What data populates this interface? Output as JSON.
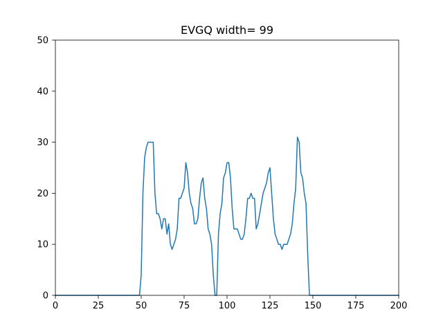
{
  "chart_data": {
    "type": "line",
    "title": "EVGQ width= 99",
    "xlabel": "",
    "ylabel": "",
    "xlim": [
      0,
      200
    ],
    "ylim": [
      0,
      50
    ],
    "x_ticks": [
      0,
      25,
      50,
      75,
      100,
      125,
      150,
      175,
      200
    ],
    "y_ticks": [
      0,
      10,
      20,
      30,
      40,
      50
    ],
    "grid": false,
    "series": [
      {
        "color": "#1f77b4",
        "x": [
          0,
          49,
          50,
          51,
          52,
          53,
          54,
          55,
          56,
          57,
          58,
          59,
          60,
          61,
          62,
          63,
          64,
          65,
          66,
          67,
          68,
          69,
          70,
          71,
          72,
          73,
          74,
          75,
          76,
          77,
          78,
          79,
          80,
          81,
          82,
          83,
          84,
          85,
          86,
          87,
          88,
          89,
          90,
          91,
          92,
          93,
          94,
          95,
          96,
          97,
          98,
          99,
          100,
          101,
          102,
          103,
          104,
          105,
          106,
          107,
          108,
          109,
          110,
          111,
          112,
          113,
          114,
          115,
          116,
          117,
          118,
          119,
          120,
          121,
          122,
          123,
          124,
          125,
          126,
          127,
          128,
          129,
          130,
          131,
          132,
          133,
          134,
          135,
          136,
          137,
          138,
          139,
          140,
          141,
          142,
          143,
          144,
          145,
          146,
          147,
          148,
          200
        ],
        "y": [
          0,
          0,
          4,
          20,
          27,
          29,
          30,
          30,
          30,
          30,
          20,
          16,
          16,
          15,
          13,
          15,
          15,
          12,
          14,
          10,
          9,
          10,
          11,
          13,
          19,
          19,
          20,
          21,
          26,
          24,
          20,
          18,
          17,
          14,
          14,
          15,
          19,
          22,
          23,
          19,
          17,
          13,
          12,
          10,
          4,
          0,
          0,
          12,
          16,
          18,
          23,
          24,
          26,
          26,
          23,
          17,
          13,
          13,
          13,
          12,
          11,
          11,
          12,
          15,
          19,
          19,
          20,
          19,
          19,
          13,
          14,
          16,
          18,
          20,
          21,
          22,
          24,
          25,
          20,
          15,
          12,
          11,
          10,
          10,
          9,
          10,
          10,
          10,
          11,
          12,
          14,
          18,
          21,
          31,
          30,
          24,
          23,
          20,
          18,
          8,
          0,
          0
        ]
      }
    ]
  }
}
